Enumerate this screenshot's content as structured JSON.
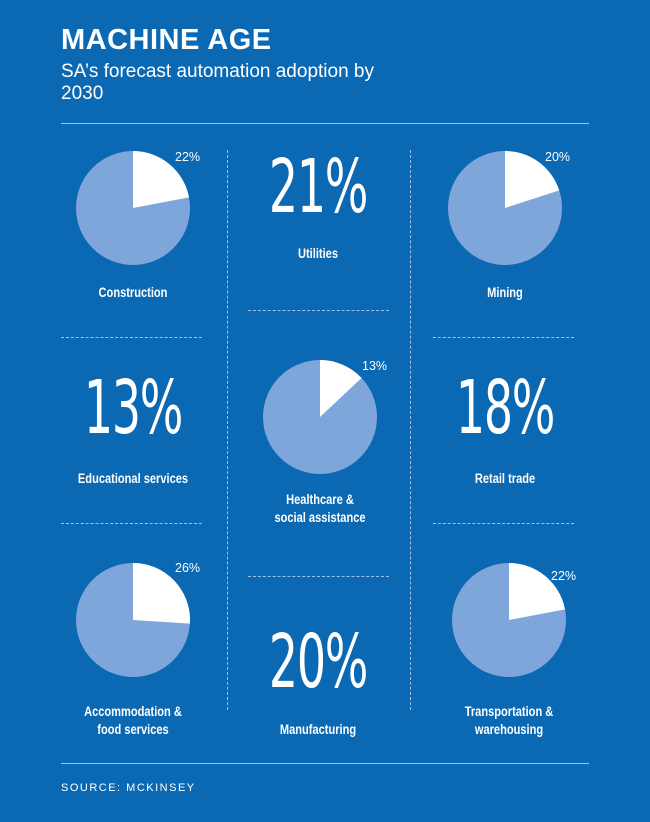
{
  "title": "MACHINE AGE",
  "subtitle": "SA’s forecast automation adoption by 2030",
  "source": "SOURCE: MCKINSEY",
  "colors": {
    "background": "#0b69b4",
    "pie_fill": "#7fa6db",
    "highlight": "#ffffff"
  },
  "chart_data": {
    "type": "pie",
    "title": "MACHINE AGE",
    "subtitle": "SA’s forecast automation adoption by 2030",
    "items": [
      {
        "sector": "Construction",
        "value": 22,
        "display": "22%",
        "style": "pie"
      },
      {
        "sector": "Utilities",
        "value": 21,
        "display": "21%",
        "style": "number"
      },
      {
        "sector": "Mining",
        "value": 20,
        "display": "20%",
        "style": "pie"
      },
      {
        "sector": "Educational services",
        "value": 13,
        "display": "13%",
        "style": "number"
      },
      {
        "sector": "Healthcare & social assistance",
        "label_lines": [
          "Healthcare &",
          "social assistance"
        ],
        "value": 13,
        "display": "13%",
        "style": "pie"
      },
      {
        "sector": "Retail trade",
        "value": 18,
        "display": "18%",
        "style": "number"
      },
      {
        "sector": "Accommodation & food services",
        "label_lines": [
          "Accommodation &",
          "food services"
        ],
        "value": 26,
        "display": "26%",
        "style": "pie"
      },
      {
        "sector": "Manufacturing",
        "value": 20,
        "display": "20%",
        "style": "number"
      },
      {
        "sector": "Transportation & warehousing",
        "label_lines": [
          "Transportation &",
          "warehousing"
        ],
        "value": 22,
        "display": "22%",
        "style": "pie"
      }
    ]
  }
}
